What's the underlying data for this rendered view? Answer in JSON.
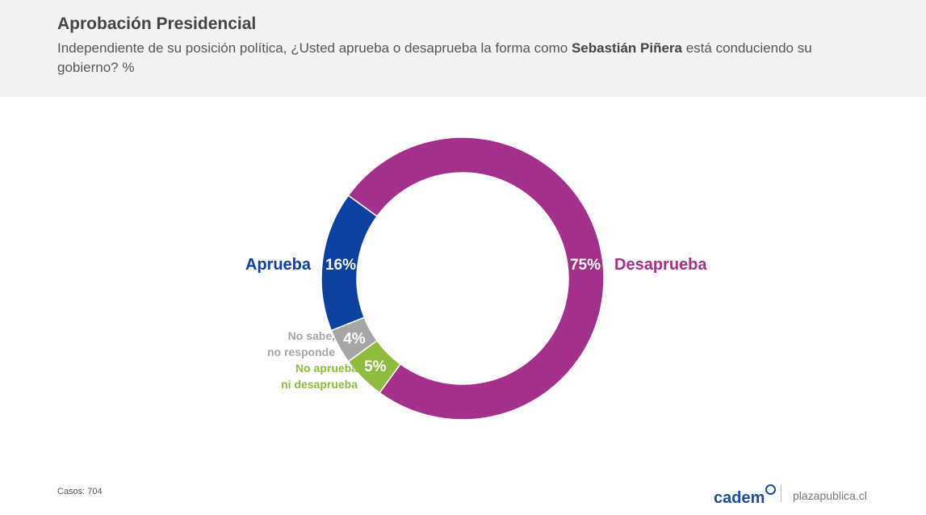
{
  "header": {
    "title": "Aprobación Presidencial",
    "question_pre": "Independiente de su posición política, ¿Usted aprueba o desaprueba la forma como ",
    "question_name": "Sebastián Piñera",
    "question_post": " está conduciendo su gobierno? %"
  },
  "chart_data": {
    "type": "pie",
    "donut": true,
    "categories": [
      "Desaprueba",
      "No aprueba ni desaprueba",
      "No sabe, no responde",
      "Aprueba"
    ],
    "values": [
      75,
      5,
      4,
      16
    ],
    "value_labels": [
      "75%",
      "5%",
      "4%",
      "16%"
    ],
    "colors": [
      "#a3308a",
      "#8fbc3c",
      "#a6a6a6",
      "#0c41a1"
    ],
    "label_lines": [
      [
        "Desaprueba"
      ],
      [
        "No aprueba",
        "ni desaprueba"
      ],
      [
        "No sabe,",
        "no responde"
      ],
      [
        "Aprueba"
      ]
    ]
  },
  "footer": {
    "casos": "Casos: 704",
    "logo": "cadem",
    "site": "plazapublica.cl"
  }
}
